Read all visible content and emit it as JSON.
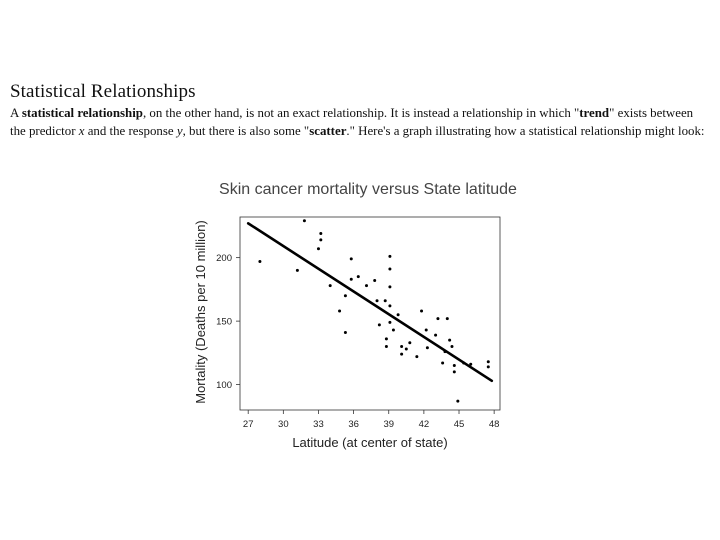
{
  "section": {
    "heading": "Statistical Relationships",
    "paragraph": {
      "p1": "A ",
      "b1": "statistical relationship",
      "p2": ", on the other hand, is not an exact relationship. It is instead a relationship in which \"",
      "b2": "trend",
      "p3": "\" exists between the predictor ",
      "i1": "x",
      "p4": " and the response ",
      "i2": "y",
      "p5": ", but there is also some \"",
      "b3": "scatter",
      "p6": ".\" Here's a graph illustrating how a statistical relationship might look:"
    }
  },
  "chart_data": {
    "type": "scatter",
    "title": "Skin cancer mortality versus State latitude",
    "xlabel": "Latitude (at center of state)",
    "ylabel": "Mortality (Deaths per 10 million)",
    "xlim": [
      26.3,
      48.5
    ],
    "ylim": [
      80,
      232
    ],
    "xticks": [
      27,
      30,
      33,
      36,
      39,
      42,
      45,
      48
    ],
    "yticks": [
      100,
      150,
      200
    ],
    "grid": false,
    "points": [
      [
        28.0,
        197
      ],
      [
        31.2,
        190
      ],
      [
        31.8,
        229
      ],
      [
        33.0,
        207
      ],
      [
        33.2,
        219
      ],
      [
        33.2,
        214
      ],
      [
        34.0,
        178
      ],
      [
        34.8,
        158
      ],
      [
        35.3,
        170
      ],
      [
        35.3,
        141
      ],
      [
        35.8,
        183
      ],
      [
        35.8,
        199
      ],
      [
        36.4,
        185
      ],
      [
        37.1,
        178
      ],
      [
        37.8,
        182
      ],
      [
        38.0,
        166
      ],
      [
        38.2,
        147
      ],
      [
        38.7,
        166
      ],
      [
        38.8,
        130
      ],
      [
        38.8,
        136
      ],
      [
        39.1,
        201
      ],
      [
        39.1,
        191
      ],
      [
        39.1,
        177
      ],
      [
        39.1,
        162
      ],
      [
        39.1,
        149
      ],
      [
        39.4,
        143
      ],
      [
        39.8,
        155
      ],
      [
        40.1,
        124
      ],
      [
        40.1,
        130
      ],
      [
        40.5,
        128
      ],
      [
        40.8,
        133
      ],
      [
        41.4,
        122
      ],
      [
        41.8,
        158
      ],
      [
        42.2,
        143
      ],
      [
        42.3,
        129
      ],
      [
        43.0,
        139
      ],
      [
        43.2,
        152
      ],
      [
        43.6,
        117
      ],
      [
        43.8,
        126
      ],
      [
        44.0,
        152
      ],
      [
        44.2,
        135
      ],
      [
        44.4,
        130
      ],
      [
        44.6,
        115
      ],
      [
        44.6,
        110
      ],
      [
        44.9,
        87
      ],
      [
        45.4,
        117
      ],
      [
        46.0,
        116
      ],
      [
        47.5,
        114
      ],
      [
        47.5,
        118
      ]
    ],
    "fit_line": {
      "x1": 27.0,
      "y1": 227,
      "x2": 47.8,
      "y2": 103
    }
  }
}
